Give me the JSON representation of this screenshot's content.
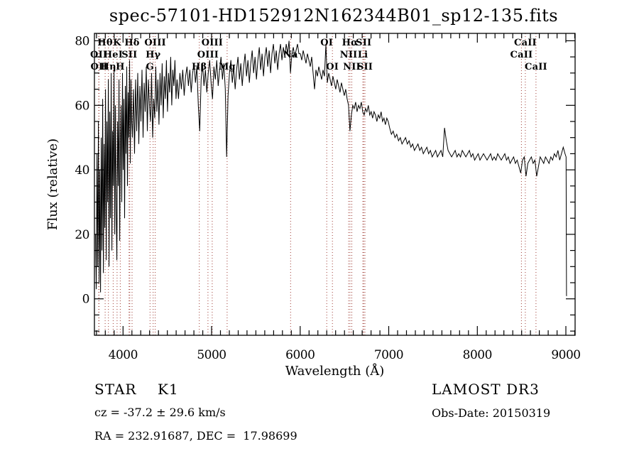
{
  "footer": {
    "class_label": "STAR",
    "subclass": "K1",
    "survey": "LAMOST DR3",
    "cz": "cz = -37.2 ± 29.6 km/s",
    "obs_date": "Obs-Date: 20150319",
    "radec": "RA = 232.91687, DEC =  17.98699"
  },
  "chart_data": {
    "type": "line",
    "title": "spec-57101-HD152912N162344B01_sp12-135.fits",
    "xlabel": "Wavelength (Å)",
    "ylabel": "Flux (relative)",
    "xticks": [
      4000,
      5000,
      6000,
      7000,
      8000,
      9000
    ],
    "yticks": [
      0,
      20,
      40,
      60,
      80
    ],
    "minor_tick_step": {
      "x": 100,
      "y": 5
    },
    "axis_range": {
      "x": [
        3677,
        9104
      ],
      "y": [
        -11.3,
        82.3
      ]
    },
    "grid": false,
    "legend": "none",
    "line_color": "#000000",
    "marker_line_color": "#9e3a32",
    "marker_wavelengths": [
      3726,
      3729,
      3798,
      3835,
      3889,
      3933,
      3969,
      4068,
      4076,
      4102,
      4305,
      4340,
      4363,
      4861,
      4959,
      5007,
      5175,
      5892,
      6300,
      6364,
      6548,
      6563,
      6583,
      6708,
      6717,
      6731,
      8498,
      8542,
      8662
    ],
    "line_labels": [
      {
        "text": "Hθ",
        "wavelength": 3798,
        "row": 1
      },
      {
        "text": "K",
        "wavelength": 3933,
        "row": 1
      },
      {
        "text": "Hδ",
        "wavelength": 4102,
        "row": 1
      },
      {
        "text": "OIII",
        "wavelength": 4363,
        "row": 1
      },
      {
        "text": "OIII",
        "wavelength": 5007,
        "row": 1
      },
      {
        "text": "OI",
        "wavelength": 6300,
        "row": 1
      },
      {
        "text": "Hα",
        "wavelength": 6563,
        "row": 1
      },
      {
        "text": "SII",
        "wavelength": 6717,
        "row": 1
      },
      {
        "text": "CaII",
        "wavelength": 8542,
        "row": 1
      },
      {
        "text": "OII",
        "wavelength": 3726,
        "row": 2
      },
      {
        "text": "HeI",
        "wavelength": 3889,
        "row": 2
      },
      {
        "text": "SII",
        "wavelength": 4072,
        "row": 2
      },
      {
        "text": "Hγ",
        "wavelength": 4340,
        "row": 2
      },
      {
        "text": "OIII",
        "wavelength": 4959,
        "row": 2
      },
      {
        "text": "Na",
        "wavelength": 5892,
        "row": 2
      },
      {
        "text": "NII",
        "wavelength": 6548,
        "row": 2
      },
      {
        "text": "Li",
        "wavelength": 6708,
        "row": 2
      },
      {
        "text": "CaII",
        "wavelength": 8498,
        "row": 2
      },
      {
        "text": "OII",
        "wavelength": 3729,
        "row": 3
      },
      {
        "text": "Hη",
        "wavelength": 3835,
        "row": 3
      },
      {
        "text": "H",
        "wavelength": 3969,
        "row": 3
      },
      {
        "text": "G",
        "wavelength": 4305,
        "row": 3
      },
      {
        "text": "Hβ",
        "wavelength": 4861,
        "row": 3
      },
      {
        "text": "Mg",
        "wavelength": 5175,
        "row": 3
      },
      {
        "text": "OI",
        "wavelength": 6364,
        "row": 3
      },
      {
        "text": "NII",
        "wavelength": 6583,
        "row": 3
      },
      {
        "text": "SII",
        "wavelength": 6731,
        "row": 3
      },
      {
        "text": "CaII",
        "wavelength": 8662,
        "row": 3
      }
    ],
    "series": [
      {
        "name": "spectrum",
        "segments": [
          {
            "start": 3690,
            "step": 8,
            "flux": [
              20,
              3,
              45,
              10,
              55,
              5,
              40,
              2,
              50,
              15,
              62,
              8,
              48,
              22,
              65,
              12,
              55,
              30,
              68,
              10,
              58,
              25,
              70,
              15,
              52,
              35,
              72,
              20,
              60,
              28,
              12,
              55,
              35,
              68,
              18,
              48,
              60,
              30,
              70,
              40,
              62,
              25,
              66,
              45,
              72,
              35,
              64,
              50,
              74,
              42,
              68,
              55
            ]
          },
          {
            "start": 4106,
            "step": 12,
            "flux": [
              50,
              65,
              45,
              68,
              52,
              70,
              48,
              66,
              55,
              71,
              50,
              67,
              58,
              72,
              52,
              68,
              60,
              55,
              70,
              50,
              62,
              56,
              72,
              58,
              68,
              54,
              70,
              60,
              73,
              56,
              69,
              62,
              74,
              58,
              70,
              64,
              75,
              60,
              71,
              66,
              74,
              62
            ]
          },
          {
            "start": 4610,
            "step": 16,
            "flux": [
              68,
              62,
              70,
              65,
              71,
              63,
              69,
              72,
              66,
              71,
              64,
              70,
              73,
              67,
              72,
              60,
              52,
              68,
              73,
              66,
              71,
              64,
              70,
              74,
              67,
              62,
              72,
              68,
              74,
              66,
              71,
              75,
              68,
              73,
              65,
              44,
              63,
              70,
              74,
              67,
              72,
              65,
              71,
              75,
              68,
              73,
              66,
              72,
              76,
              69,
              74,
              67,
              73,
              77,
              70,
              75,
              68,
              74,
              78,
              71,
              76,
              69,
              75,
              78,
              72,
              77,
              70,
              76,
              79,
              73,
              77,
              71,
              76,
              79,
              74
            ]
          },
          {
            "start": 5810,
            "step": 16,
            "flux": [
              78,
              75,
              79,
              76,
              80,
              70,
              76,
              78,
              75,
              77,
              79,
              76,
              76,
              74,
              77,
              75,
              73,
              76,
              74,
              72,
              75,
              70,
              65,
              71,
              69,
              72,
              70,
              68,
              71,
              69,
              79,
              67,
              70,
              68,
              66,
              69,
              67,
              65,
              68,
              66,
              64,
              67,
              65,
              63,
              65,
              62,
              60,
              52,
              57,
              60,
              59,
              61,
              58,
              60,
              59,
              61,
              58,
              57,
              59,
              58,
              60,
              57,
              58,
              56,
              58,
              57,
              55,
              57,
              56,
              58,
              55,
              56,
              54,
              56,
              55
            ]
          },
          {
            "start": 7010,
            "step": 20,
            "flux": [
              53,
              51,
              52,
              50,
              51,
              49,
              50,
              48,
              49,
              50,
              48,
              49,
              47,
              48,
              46,
              47,
              48,
              46,
              47,
              45,
              46,
              47,
              45,
              46,
              44,
              45,
              46,
              44,
              45,
              46,
              44,
              53,
              49,
              46,
              45,
              44,
              45,
              46,
              44,
              45,
              44,
              46,
              45,
              44,
              45,
              46,
              44,
              45,
              43,
              44,
              45,
              43,
              44,
              45,
              44,
              43,
              44,
              45,
              43,
              44,
              43,
              45,
              44,
              43,
              44,
              45,
              43,
              44,
              42,
              43,
              44,
              42,
              43,
              41,
              39,
              43,
              44,
              38,
              42,
              43,
              44,
              42,
              43,
              38,
              41,
              44,
              43,
              42,
              44,
              43,
              42,
              44,
              43,
              45,
              44,
              46,
              43,
              45,
              47,
              45
            ]
          },
          {
            "start": 9002,
            "step": 5,
            "flux": [
              44,
              1,
              1
            ]
          }
        ]
      }
    ]
  }
}
